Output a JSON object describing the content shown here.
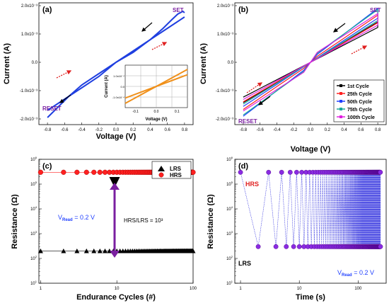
{
  "chart_data": [
    {
      "panel": "(a)",
      "type": "line",
      "xlabel": "Voltage (V)",
      "ylabel": "Current (A)",
      "xlim": [
        -0.9,
        0.9
      ],
      "ylim": [
        -0.0022,
        0.0021
      ],
      "xticks": [
        "-0.8",
        "-0.6",
        "-0.4",
        "-0.2",
        "0.0",
        "0.2",
        "0.4",
        "0.6",
        "0.8"
      ],
      "yticks": [
        "-2.0x10⁻³",
        "-1.0x10⁻³",
        "0.0",
        "1.0x10⁻³",
        "2.0x10⁻³"
      ],
      "annotations": [
        "SET",
        "RESET"
      ],
      "series": [
        {
          "x": [
            0,
            0.2,
            0.4,
            0.55,
            0.65,
            0.72,
            0.78,
            0.8
          ],
          "y": [
            0,
            0.00035,
            0.0008,
            0.0012,
            0.0015,
            0.0017,
            0.0018,
            0.00175
          ]
        },
        {
          "x": [
            0.8,
            0.7,
            0.6,
            0.4,
            0.2,
            0
          ],
          "y": [
            0.0016,
            0.0014,
            0.0012,
            0.0008,
            0.0004,
            0
          ]
        },
        {
          "x": [
            0,
            -0.2,
            -0.4,
            -0.55,
            -0.65,
            -0.75,
            -0.8
          ],
          "y": [
            0,
            -0.0004,
            -0.0008,
            -0.0012,
            -0.0015,
            -0.0018,
            -0.00195
          ]
        },
        {
          "x": [
            -0.8,
            -0.7,
            -0.6,
            -0.4,
            -0.2,
            0
          ],
          "y": [
            -0.0017,
            -0.0015,
            -0.0013,
            -0.0009,
            -0.0005,
            0
          ]
        }
      ],
      "inset": {
        "type": "line",
        "xlabel": "Voltage (V)",
        "ylabel": "Current (A)",
        "xlim": [
          -0.15,
          0.15
        ],
        "ylim": [
          -0.0002,
          0.0002
        ],
        "xticks": [
          "-0.1",
          "0.0",
          "0.1"
        ],
        "yticks": [
          "-1.0x10⁻⁴",
          "0.0",
          "1.0x10⁻⁴"
        ],
        "series": [
          {
            "x": [
              -0.15,
              0.15
            ],
            "y": [
              -0.00016,
              0.00016
            ]
          },
          {
            "x": [
              -0.15,
              0.15
            ],
            "y": [
              -0.00011,
              0.00011
            ]
          }
        ]
      }
    },
    {
      "panel": "(b)",
      "type": "line",
      "xlabel": "Voltage (V)",
      "ylabel": "Current (A)",
      "xlim": [
        -0.9,
        0.9
      ],
      "ylim": [
        -0.0022,
        0.0021
      ],
      "xticks": [
        "-0.8",
        "-0.6",
        "-0.4",
        "-0.2",
        "0.0",
        "0.2",
        "0.4",
        "0.6",
        "0.8"
      ],
      "yticks": [
        "-2.0x10⁻³",
        "-1.0x10⁻³",
        "0.0",
        "1.0x10⁻³",
        "2.0x10⁻³"
      ],
      "annotations": [
        "SET",
        "RESET"
      ],
      "legend": "bottom-right",
      "series": [
        {
          "name": "1st Cycle",
          "color": "#000000",
          "peak": 0.0015
        },
        {
          "name": "25th Cycle",
          "color": "#ff2020",
          "peak": 0.0017
        },
        {
          "name": "50th Cycle",
          "color": "#1f3fff",
          "peak": 0.0019
        },
        {
          "name": "75th Cycle",
          "color": "#1aa89a",
          "peak": 0.0018
        },
        {
          "name": "100th Cycle",
          "color": "#e020e0",
          "peak": 0.0016
        }
      ]
    },
    {
      "panel": "(c)",
      "type": "scatter",
      "xlabel": "Endurance Cycles (#)",
      "ylabel": "Resistance (Ω)",
      "xscale": "log",
      "yscale": "log",
      "xlim": [
        1,
        100
      ],
      "ylim": [
        10,
        1000000
      ],
      "xticks": [
        "1",
        "10",
        "100"
      ],
      "legend": "top-right",
      "annotations": [
        "V_Read = 0.2 V",
        "HRS/LRS = 10³"
      ],
      "series": [
        {
          "name": "LRS",
          "color": "#000000",
          "marker": "triangle",
          "value": 200
        },
        {
          "name": "HRS",
          "color": "#ff2020",
          "marker": "circle",
          "value": 300000
        }
      ]
    },
    {
      "panel": "(d)",
      "type": "line",
      "xlabel": "Time (s)",
      "ylabel": "Resistance (Ω)",
      "xscale": "log",
      "yscale": "log",
      "xlim": [
        1,
        300
      ],
      "ylim": [
        10,
        1000000
      ],
      "xticks": [
        "1",
        "10",
        "100"
      ],
      "annotations": [
        "HRS",
        "LRS",
        "V_Read = 0.2 V"
      ],
      "series": [
        {
          "name": "HRS",
          "value": 300000
        },
        {
          "name": "LRS",
          "value": 300
        }
      ]
    }
  ]
}
